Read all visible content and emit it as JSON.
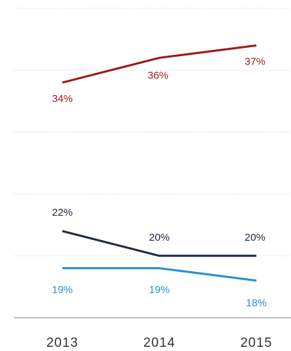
{
  "chart_data": {
    "type": "line",
    "title": "",
    "xlabel": "",
    "ylabel": "",
    "x": [
      "2013",
      "2014",
      "2015"
    ],
    "ylim": [
      15,
      40
    ],
    "grid": true,
    "series": [
      {
        "values": [
          34,
          36,
          37
        ],
        "color": "#9e1b1b",
        "labels": [
          "34%",
          "36%",
          "37%"
        ]
      },
      {
        "values": [
          22,
          20,
          20
        ],
        "color": "#1f2a44",
        "labels": [
          "22%",
          "20%",
          "20%"
        ]
      },
      {
        "values": [
          19,
          19,
          18
        ],
        "color": "#2a8fd0",
        "labels": [
          "19%",
          "19%",
          "18%"
        ]
      }
    ]
  }
}
